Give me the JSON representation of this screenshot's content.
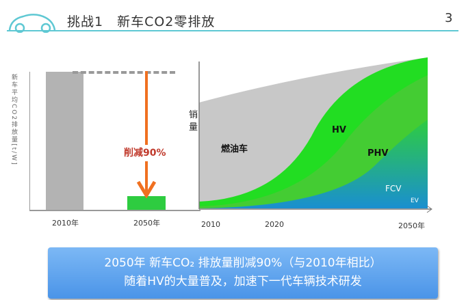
{
  "header": {
    "title": "挑战1　新车CO2零排放",
    "page": "3"
  },
  "left_chart": {
    "ylabel": "新车平均CO2排放量[t/W]",
    "bars": [
      {
        "label": "2010年",
        "value": 100
      },
      {
        "label": "2050年",
        "value": 10
      }
    ],
    "reduction_label": "削减90%",
    "colors": {
      "bar2010": "#b3b3b3",
      "bar2050": "#2ecc40",
      "arrow": "#f07020"
    }
  },
  "right_chart": {
    "ylabel": "销量",
    "x_ticks": [
      "2010",
      "2020",
      "2050年"
    ],
    "areas": [
      "燃油车",
      "HV",
      "PHV",
      "FCV",
      "EV"
    ]
  },
  "banner": {
    "line1": "2050年 新车CO₂ 排放量削减90%（与2010年相比）",
    "line2": "随着HV的大量普及，加速下一代车辆技术研发"
  }
}
